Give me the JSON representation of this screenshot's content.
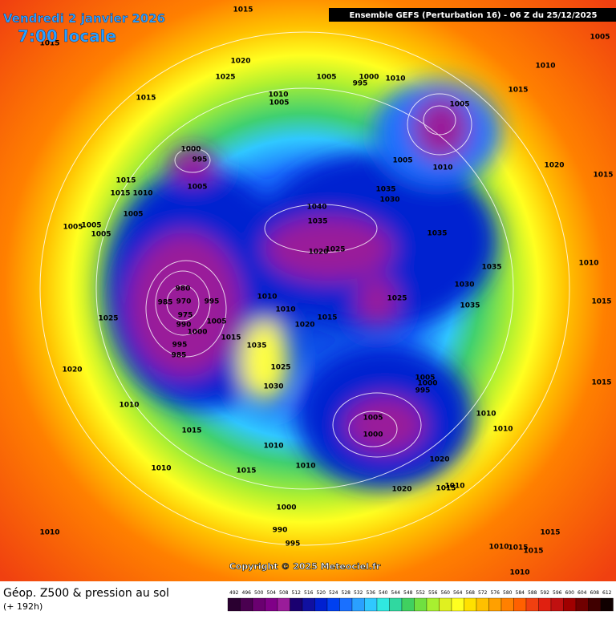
{
  "header": {
    "date": "Vendredi 2 janvier 2026",
    "time": "7:00 locale",
    "run": "Ensemble GEFS  (Perturbation 16)  -  06 Z du 25/12/2025"
  },
  "map": {
    "pressure_labels": [
      1015,
      1015,
      1005,
      1020,
      1025,
      1005,
      1000,
      995,
      1010,
      1010,
      1015,
      1010,
      1005,
      1015,
      1005,
      1000,
      995,
      1005,
      1010,
      1020,
      1015,
      1015,
      1010,
      1005,
      1015,
      1035,
      1030,
      1040,
      1005,
      1035,
      1005,
      1005,
      1005,
      1035,
      1025,
      1020,
      1035,
      1010,
      980,
      970,
      985,
      995,
      975,
      990,
      1000,
      1005,
      1010,
      1030,
      1025,
      1015,
      1010,
      1035,
      1015,
      1025,
      1020,
      1015,
      995,
      985,
      1035,
      1025,
      1020,
      1005,
      995,
      1000,
      1030,
      1015,
      1010,
      1010,
      1005,
      1000,
      1010,
      1015,
      1010,
      1020,
      1010,
      1010,
      1015,
      1020,
      1010,
      1015,
      1000,
      990,
      1010,
      1015,
      995,
      1015,
      1010,
      1015,
      1010
    ],
    "copyright": "Copyright © 2025 Meteociel.fr"
  },
  "footer": {
    "title": "Géop. Z500 & pression au sol",
    "lead": "(+ 192h)"
  },
  "colorbar": {
    "ticks": [
      492,
      496,
      500,
      504,
      508,
      512,
      516,
      520,
      524,
      528,
      532,
      536,
      540,
      544,
      548,
      552,
      556,
      560,
      564,
      568,
      572,
      576,
      580,
      584,
      588,
      592,
      596,
      600,
      604,
      608,
      612
    ],
    "colors": [
      "#2a0030",
      "#4a0050",
      "#6a0070",
      "#800088",
      "#9a1c9a",
      "#1a0070",
      "#1010a0",
      "#0020d0",
      "#0040f0",
      "#1a70ff",
      "#2aa0ff",
      "#30c8ff",
      "#30e8e0",
      "#30d8a0",
      "#40d060",
      "#70e040",
      "#a8f030",
      "#e0f020",
      "#ffff20",
      "#ffe000",
      "#ffc000",
      "#ffa000",
      "#ff8000",
      "#ff6000",
      "#f04010",
      "#e02010",
      "#c01010",
      "#a00000",
      "#700000",
      "#400000",
      "#100000"
    ]
  }
}
